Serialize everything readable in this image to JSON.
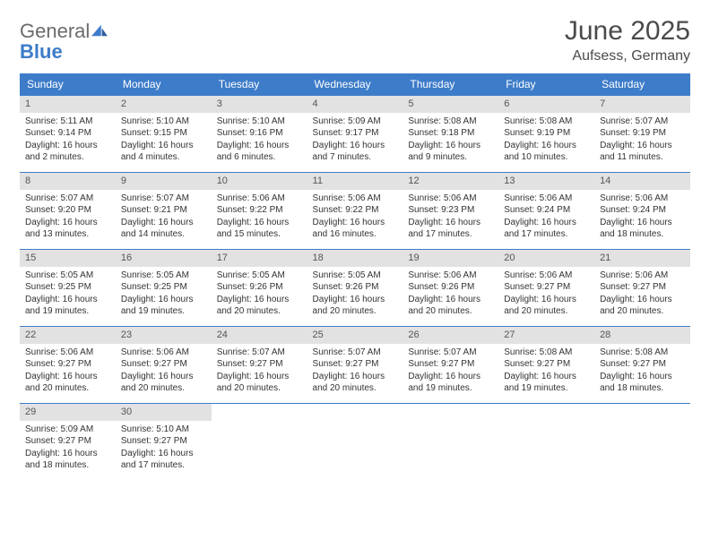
{
  "branding": {
    "logo_word1": "General",
    "logo_word2": "Blue",
    "logo_color_gray": "#6b6b6b",
    "logo_color_blue": "#3d7cc9"
  },
  "header": {
    "month_title": "June 2025",
    "location": "Aufsess, Germany"
  },
  "styling": {
    "header_bg": "#3d7cc9",
    "header_text": "#ffffff",
    "daynum_bg": "#e2e2e2",
    "row_border": "#3d7cc9",
    "body_text": "#333333",
    "page_bg": "#ffffff",
    "title_fontsize": 30,
    "location_fontsize": 16,
    "weekday_fontsize": 12,
    "cell_fontsize": 10
  },
  "weekdays": [
    "Sunday",
    "Monday",
    "Tuesday",
    "Wednesday",
    "Thursday",
    "Friday",
    "Saturday"
  ],
  "weeks": [
    [
      {
        "day": "1",
        "sunrise": "Sunrise: 5:11 AM",
        "sunset": "Sunset: 9:14 PM",
        "daylight1": "Daylight: 16 hours",
        "daylight2": "and 2 minutes."
      },
      {
        "day": "2",
        "sunrise": "Sunrise: 5:10 AM",
        "sunset": "Sunset: 9:15 PM",
        "daylight1": "Daylight: 16 hours",
        "daylight2": "and 4 minutes."
      },
      {
        "day": "3",
        "sunrise": "Sunrise: 5:10 AM",
        "sunset": "Sunset: 9:16 PM",
        "daylight1": "Daylight: 16 hours",
        "daylight2": "and 6 minutes."
      },
      {
        "day": "4",
        "sunrise": "Sunrise: 5:09 AM",
        "sunset": "Sunset: 9:17 PM",
        "daylight1": "Daylight: 16 hours",
        "daylight2": "and 7 minutes."
      },
      {
        "day": "5",
        "sunrise": "Sunrise: 5:08 AM",
        "sunset": "Sunset: 9:18 PM",
        "daylight1": "Daylight: 16 hours",
        "daylight2": "and 9 minutes."
      },
      {
        "day": "6",
        "sunrise": "Sunrise: 5:08 AM",
        "sunset": "Sunset: 9:19 PM",
        "daylight1": "Daylight: 16 hours",
        "daylight2": "and 10 minutes."
      },
      {
        "day": "7",
        "sunrise": "Sunrise: 5:07 AM",
        "sunset": "Sunset: 9:19 PM",
        "daylight1": "Daylight: 16 hours",
        "daylight2": "and 11 minutes."
      }
    ],
    [
      {
        "day": "8",
        "sunrise": "Sunrise: 5:07 AM",
        "sunset": "Sunset: 9:20 PM",
        "daylight1": "Daylight: 16 hours",
        "daylight2": "and 13 minutes."
      },
      {
        "day": "9",
        "sunrise": "Sunrise: 5:07 AM",
        "sunset": "Sunset: 9:21 PM",
        "daylight1": "Daylight: 16 hours",
        "daylight2": "and 14 minutes."
      },
      {
        "day": "10",
        "sunrise": "Sunrise: 5:06 AM",
        "sunset": "Sunset: 9:22 PM",
        "daylight1": "Daylight: 16 hours",
        "daylight2": "and 15 minutes."
      },
      {
        "day": "11",
        "sunrise": "Sunrise: 5:06 AM",
        "sunset": "Sunset: 9:22 PM",
        "daylight1": "Daylight: 16 hours",
        "daylight2": "and 16 minutes."
      },
      {
        "day": "12",
        "sunrise": "Sunrise: 5:06 AM",
        "sunset": "Sunset: 9:23 PM",
        "daylight1": "Daylight: 16 hours",
        "daylight2": "and 17 minutes."
      },
      {
        "day": "13",
        "sunrise": "Sunrise: 5:06 AM",
        "sunset": "Sunset: 9:24 PM",
        "daylight1": "Daylight: 16 hours",
        "daylight2": "and 17 minutes."
      },
      {
        "day": "14",
        "sunrise": "Sunrise: 5:06 AM",
        "sunset": "Sunset: 9:24 PM",
        "daylight1": "Daylight: 16 hours",
        "daylight2": "and 18 minutes."
      }
    ],
    [
      {
        "day": "15",
        "sunrise": "Sunrise: 5:05 AM",
        "sunset": "Sunset: 9:25 PM",
        "daylight1": "Daylight: 16 hours",
        "daylight2": "and 19 minutes."
      },
      {
        "day": "16",
        "sunrise": "Sunrise: 5:05 AM",
        "sunset": "Sunset: 9:25 PM",
        "daylight1": "Daylight: 16 hours",
        "daylight2": "and 19 minutes."
      },
      {
        "day": "17",
        "sunrise": "Sunrise: 5:05 AM",
        "sunset": "Sunset: 9:26 PM",
        "daylight1": "Daylight: 16 hours",
        "daylight2": "and 20 minutes."
      },
      {
        "day": "18",
        "sunrise": "Sunrise: 5:05 AM",
        "sunset": "Sunset: 9:26 PM",
        "daylight1": "Daylight: 16 hours",
        "daylight2": "and 20 minutes."
      },
      {
        "day": "19",
        "sunrise": "Sunrise: 5:06 AM",
        "sunset": "Sunset: 9:26 PM",
        "daylight1": "Daylight: 16 hours",
        "daylight2": "and 20 minutes."
      },
      {
        "day": "20",
        "sunrise": "Sunrise: 5:06 AM",
        "sunset": "Sunset: 9:27 PM",
        "daylight1": "Daylight: 16 hours",
        "daylight2": "and 20 minutes."
      },
      {
        "day": "21",
        "sunrise": "Sunrise: 5:06 AM",
        "sunset": "Sunset: 9:27 PM",
        "daylight1": "Daylight: 16 hours",
        "daylight2": "and 20 minutes."
      }
    ],
    [
      {
        "day": "22",
        "sunrise": "Sunrise: 5:06 AM",
        "sunset": "Sunset: 9:27 PM",
        "daylight1": "Daylight: 16 hours",
        "daylight2": "and 20 minutes."
      },
      {
        "day": "23",
        "sunrise": "Sunrise: 5:06 AM",
        "sunset": "Sunset: 9:27 PM",
        "daylight1": "Daylight: 16 hours",
        "daylight2": "and 20 minutes."
      },
      {
        "day": "24",
        "sunrise": "Sunrise: 5:07 AM",
        "sunset": "Sunset: 9:27 PM",
        "daylight1": "Daylight: 16 hours",
        "daylight2": "and 20 minutes."
      },
      {
        "day": "25",
        "sunrise": "Sunrise: 5:07 AM",
        "sunset": "Sunset: 9:27 PM",
        "daylight1": "Daylight: 16 hours",
        "daylight2": "and 20 minutes."
      },
      {
        "day": "26",
        "sunrise": "Sunrise: 5:07 AM",
        "sunset": "Sunset: 9:27 PM",
        "daylight1": "Daylight: 16 hours",
        "daylight2": "and 19 minutes."
      },
      {
        "day": "27",
        "sunrise": "Sunrise: 5:08 AM",
        "sunset": "Sunset: 9:27 PM",
        "daylight1": "Daylight: 16 hours",
        "daylight2": "and 19 minutes."
      },
      {
        "day": "28",
        "sunrise": "Sunrise: 5:08 AM",
        "sunset": "Sunset: 9:27 PM",
        "daylight1": "Daylight: 16 hours",
        "daylight2": "and 18 minutes."
      }
    ],
    [
      {
        "day": "29",
        "sunrise": "Sunrise: 5:09 AM",
        "sunset": "Sunset: 9:27 PM",
        "daylight1": "Daylight: 16 hours",
        "daylight2": "and 18 minutes."
      },
      {
        "day": "30",
        "sunrise": "Sunrise: 5:10 AM",
        "sunset": "Sunset: 9:27 PM",
        "daylight1": "Daylight: 16 hours",
        "daylight2": "and 17 minutes."
      },
      {
        "empty": true
      },
      {
        "empty": true
      },
      {
        "empty": true
      },
      {
        "empty": true
      },
      {
        "empty": true
      }
    ]
  ]
}
